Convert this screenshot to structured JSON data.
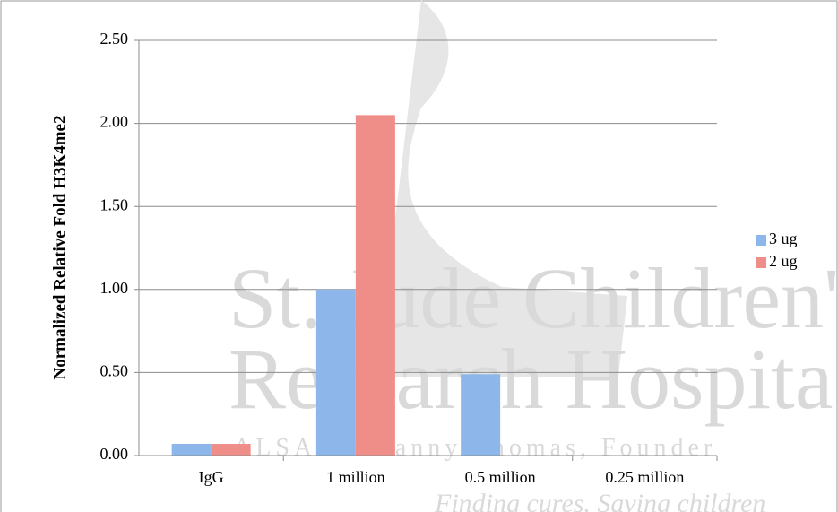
{
  "chart_data": {
    "type": "bar",
    "y_label": "Normalized Relative Fold H3K4me2",
    "watermark": [
      "St. Jude Children'",
      "Research Hospita",
      "ALSAC • Danny Thomas, Founder",
      "Finding cures. Saving children"
    ],
    "categories": [
      "IgG",
      "1 million",
      "0.5 million",
      "0.25 million"
    ],
    "series": [
      {
        "name": "3 ug",
        "color": "#8db7ea",
        "values": [
          0.07,
          1.0,
          0.49,
          0
        ]
      },
      {
        "name": "2 ug",
        "color": "#ef8d88",
        "values": [
          0.07,
          2.05,
          0,
          0
        ]
      }
    ],
    "ylim": [
      0,
      2.5
    ],
    "yticks": [
      {
        "value": 0,
        "label": "0.00"
      },
      {
        "value": 0.5,
        "label": "0.50"
      },
      {
        "value": 1,
        "label": "1.00"
      },
      {
        "value": 1.5,
        "label": "1.50"
      },
      {
        "value": 2,
        "label": "2.00"
      },
      {
        "value": 2.5,
        "label": "2.50"
      }
    ],
    "grid": true,
    "legend": "right"
  }
}
